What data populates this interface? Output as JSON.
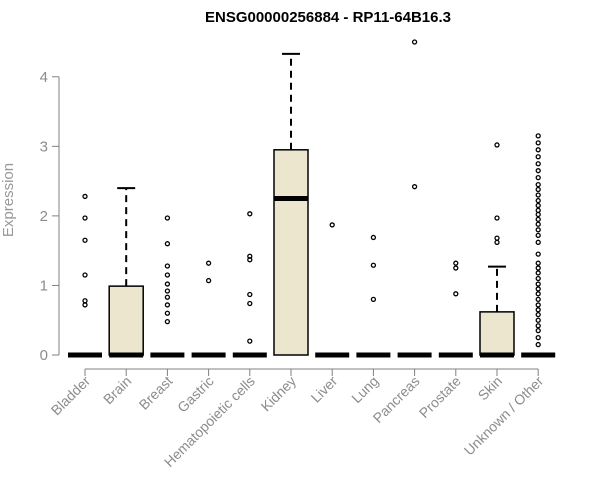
{
  "chart_data": {
    "type": "box",
    "title": "ENSG00000256884 - RP11-64B16.3",
    "ylabel": "Expression",
    "xlabel": "",
    "ylim": [
      0,
      4.5
    ],
    "yticks": [
      0,
      1,
      2,
      3,
      4
    ],
    "box_fill": "#ede6cf",
    "outline_color": "#000000",
    "axis_color": "#808080",
    "categories": [
      "Bladder",
      "Brain",
      "Breast",
      "Gastric",
      "Hematopoietic cells",
      "Kidney",
      "Liver",
      "Lung",
      "Pancreas",
      "Prostate",
      "Skin",
      "Unknown / Other"
    ],
    "boxes": [
      {
        "category": "Bladder",
        "q1": 0,
        "median": 0,
        "q3": 0,
        "whisker_low": 0,
        "whisker_high": 0,
        "outliers": [
          0.72,
          0.78,
          1.15,
          1.65,
          1.97,
          2.28
        ]
      },
      {
        "category": "Brain",
        "q1": 0,
        "median": 0,
        "q3": 0.99,
        "whisker_low": 0,
        "whisker_high": 2.4,
        "outliers": []
      },
      {
        "category": "Breast",
        "q1": 0,
        "median": 0,
        "q3": 0,
        "whisker_low": 0,
        "whisker_high": 0,
        "outliers": [
          0.48,
          0.6,
          0.72,
          0.83,
          0.92,
          1.02,
          1.15,
          1.28,
          1.6,
          1.97
        ]
      },
      {
        "category": "Gastric",
        "q1": 0,
        "median": 0,
        "q3": 0,
        "whisker_low": 0,
        "whisker_high": 0,
        "outliers": [
          1.07,
          1.32
        ]
      },
      {
        "category": "Hematopoietic cells",
        "q1": 0,
        "median": 0,
        "q3": 0,
        "whisker_low": 0,
        "whisker_high": 0,
        "outliers": [
          0.2,
          0.74,
          0.87,
          1.37,
          1.42,
          2.03
        ]
      },
      {
        "category": "Kidney",
        "q1": 0,
        "median": 2.25,
        "q3": 2.95,
        "whisker_low": 0,
        "whisker_high": 4.33,
        "outliers": []
      },
      {
        "category": "Liver",
        "q1": 0,
        "median": 0,
        "q3": 0,
        "whisker_low": 0,
        "whisker_high": 0,
        "outliers": [
          1.87
        ]
      },
      {
        "category": "Lung",
        "q1": 0,
        "median": 0,
        "q3": 0,
        "whisker_low": 0,
        "whisker_high": 0,
        "outliers": [
          0.8,
          1.29,
          1.69
        ]
      },
      {
        "category": "Pancreas",
        "q1": 0,
        "median": 0,
        "q3": 0,
        "whisker_low": 0,
        "whisker_high": 0,
        "outliers": [
          2.42,
          4.5
        ]
      },
      {
        "category": "Prostate",
        "q1": 0,
        "median": 0,
        "q3": 0,
        "whisker_low": 0,
        "whisker_high": 0,
        "outliers": [
          0.88,
          1.25,
          1.32
        ]
      },
      {
        "category": "Skin",
        "q1": 0,
        "median": 0,
        "q3": 0.62,
        "whisker_low": 0,
        "whisker_high": 1.27,
        "outliers": [
          1.62,
          1.68,
          1.97,
          3.02
        ]
      },
      {
        "category": "Unknown / Other",
        "q1": 0,
        "median": 0,
        "q3": 0,
        "whisker_low": 0,
        "whisker_high": 0,
        "outliers": [
          0.15,
          0.25,
          0.35,
          0.42,
          0.5,
          0.58,
          0.65,
          0.72,
          0.8,
          0.88,
          0.95,
          1.02,
          1.1,
          1.18,
          1.25,
          1.32,
          1.45,
          1.62,
          1.72,
          1.8,
          1.88,
          1.95,
          2.02,
          2.08,
          2.15,
          2.22,
          2.3,
          2.38,
          2.45,
          2.55,
          2.65,
          2.75,
          2.85,
          2.95,
          3.05,
          3.15
        ]
      }
    ]
  }
}
